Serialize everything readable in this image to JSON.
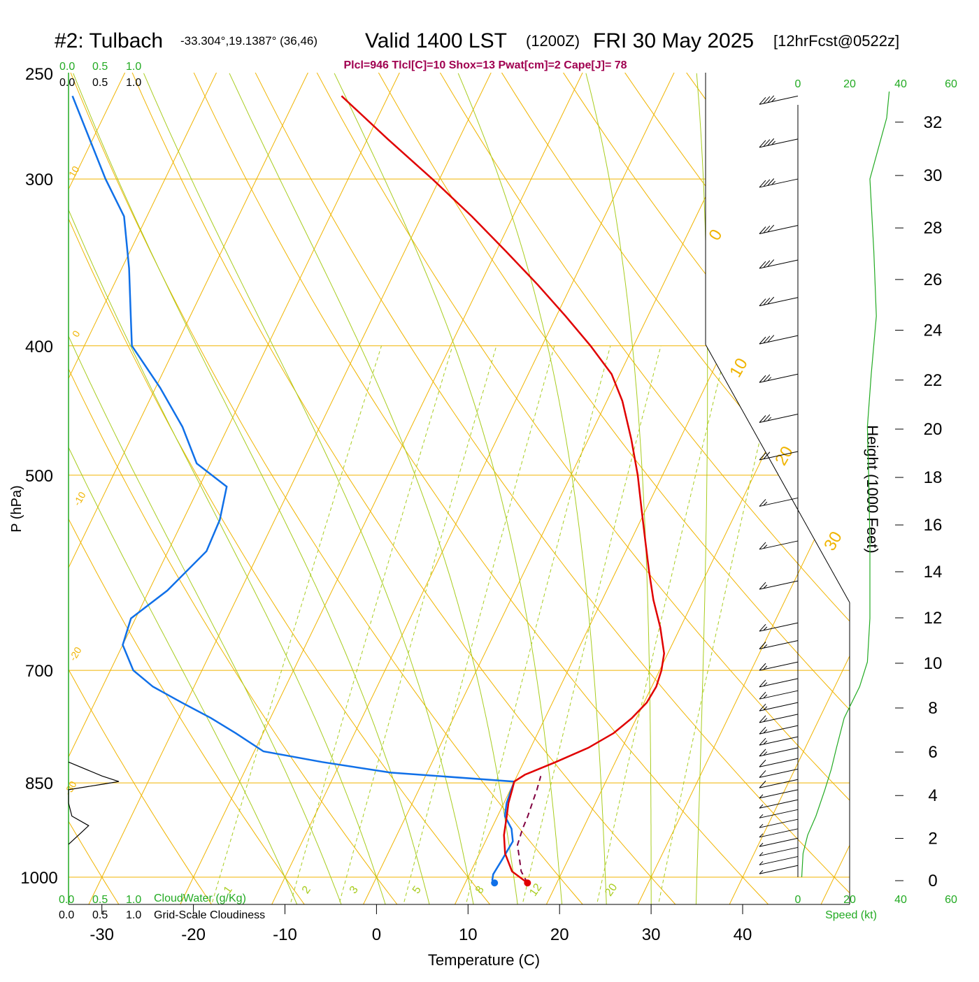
{
  "header": {
    "station": "#2: Tulbach",
    "coords": "-33.304°,19.1387° (36,46)",
    "valid": "Valid 1400 LST",
    "utc": "(1200Z)",
    "date": "FRI 30 May 2025",
    "forecast": "[12hrFcst@0522z]",
    "params": "Plcl=946 Tlcl[C]=10 Shox=13 Pwat[cm]=2 Cape[J]= 78"
  },
  "labels": {
    "pressure_axis": "P (hPa)",
    "temperature_axis": "Temperature (C)",
    "height_axis": "Height (1000 Feet)",
    "cloudwater": "CloudWater (g/Kg)",
    "cloudiness": "Grid-Scale Cloudiness",
    "speed": "Speed (kt)",
    "scale_ticks": [
      "0.0",
      "0.5",
      "1.0"
    ],
    "speed_ticks": [
      "0",
      "20",
      "40",
      "60"
    ]
  },
  "colors": {
    "isobar": "#f0b400",
    "isotherm": "#f0b400",
    "dry_adiabat": "#f0b400",
    "moist_adiabat": "#a8cc1e",
    "mixing_ratio": "#a8cc1e",
    "temperature": "#e00000",
    "dewpoint": "#1070e8",
    "parcel": "#800040",
    "params": "#a00050",
    "speed": "#22aa22",
    "cloud_scale": "#22aa22"
  },
  "chart_data": {
    "type": "line",
    "subtype": "skew-T log-P sounding",
    "x_axis": {
      "label": "Temperature (C)",
      "ticks": [
        -30,
        -20,
        -10,
        0,
        10,
        20,
        30,
        40
      ],
      "range": [
        -33,
        45
      ]
    },
    "y_axis": {
      "label": "P (hPa)",
      "scale": "log",
      "ticks": [
        250,
        300,
        400,
        500,
        700,
        850,
        1000
      ],
      "range": [
        1000,
        250
      ]
    },
    "height_axis": {
      "label": "Height (1000 Feet)",
      "ticks": [
        0,
        2,
        4,
        6,
        8,
        10,
        12,
        14,
        16,
        18,
        20,
        22,
        24,
        26,
        28,
        30,
        32
      ]
    },
    "isotherm_labels": [
      "10",
      "0",
      "-10",
      "-20",
      "-30",
      "0",
      "10",
      "20",
      "30"
    ],
    "mixing_ratio_labels": [
      "1",
      "2",
      "3",
      "5",
      "8",
      "12",
      "20"
    ],
    "series": [
      {
        "key": "temperature",
        "points": [
          [
            1010,
            16.8
          ],
          [
            990,
            14.5
          ],
          [
            960,
            12.8
          ],
          [
            930,
            11.7
          ],
          [
            900,
            11.0
          ],
          [
            880,
            10.5
          ],
          [
            860,
            10.2
          ],
          [
            848,
            10.0
          ],
          [
            838,
            10.8
          ],
          [
            820,
            13.5
          ],
          [
            800,
            16.3
          ],
          [
            780,
            18.3
          ],
          [
            760,
            19.5
          ],
          [
            740,
            20.3
          ],
          [
            720,
            20.5
          ],
          [
            700,
            20.2
          ],
          [
            680,
            19.6
          ],
          [
            650,
            17.8
          ],
          [
            620,
            15.6
          ],
          [
            590,
            13.6
          ],
          [
            560,
            11.6
          ],
          [
            530,
            9.5
          ],
          [
            500,
            7.3
          ],
          [
            470,
            4.7
          ],
          [
            440,
            1.7
          ],
          [
            420,
            -0.9
          ],
          [
            400,
            -4.7
          ],
          [
            380,
            -9.0
          ],
          [
            360,
            -13.7
          ],
          [
            340,
            -18.9
          ],
          [
            320,
            -24.5
          ],
          [
            300,
            -30.8
          ],
          [
            280,
            -37.8
          ],
          [
            260,
            -45.1
          ]
        ]
      },
      {
        "key": "dewpoint",
        "points": [
          [
            1010,
            13.2
          ],
          [
            1005,
            12.8
          ],
          [
            995,
            12.6
          ],
          [
            970,
            12.8
          ],
          [
            940,
            13.0
          ],
          [
            920,
            12.2
          ],
          [
            900,
            10.8
          ],
          [
            880,
            10.3
          ],
          [
            860,
            10.1
          ],
          [
            848,
            10.0
          ],
          [
            835,
            -4.0
          ],
          [
            820,
            -12.0
          ],
          [
            805,
            -19.0
          ],
          [
            780,
            -23.0
          ],
          [
            760,
            -26.5
          ],
          [
            740,
            -30.5
          ],
          [
            720,
            -34.5
          ],
          [
            700,
            -37.5
          ],
          [
            670,
            -40.0
          ],
          [
            640,
            -40.5
          ],
          [
            610,
            -38.0
          ],
          [
            570,
            -35.8
          ],
          [
            540,
            -36.0
          ],
          [
            510,
            -37.0
          ],
          [
            490,
            -41.5
          ],
          [
            460,
            -45.0
          ],
          [
            430,
            -49.5
          ],
          [
            400,
            -54.8
          ],
          [
            380,
            -56.5
          ],
          [
            350,
            -59.2
          ],
          [
            320,
            -62.5
          ],
          [
            300,
            -66.5
          ],
          [
            260,
            -74.5
          ]
        ]
      },
      {
        "key": "parcel",
        "points": [
          [
            1010,
            16.8
          ],
          [
            990,
            15.5
          ],
          [
            970,
            14.7
          ],
          [
            946,
            13.7
          ],
          [
            920,
            13.4
          ],
          [
            900,
            13.3
          ],
          [
            880,
            13.1
          ],
          [
            860,
            12.9
          ],
          [
            840,
            12.6
          ]
        ]
      },
      {
        "key": "speed",
        "points": [
          [
            1000,
            1.5
          ],
          [
            960,
            2.0
          ],
          [
            930,
            3.8
          ],
          [
            900,
            7.0
          ],
          [
            860,
            10.5
          ],
          [
            830,
            13.0
          ],
          [
            800,
            15.0
          ],
          [
            760,
            18.0
          ],
          [
            720,
            24.0
          ],
          [
            690,
            27.0
          ],
          [
            640,
            28.0
          ],
          [
            560,
            28.0
          ],
          [
            500,
            27.5
          ],
          [
            460,
            27.0
          ],
          [
            420,
            28.5
          ],
          [
            380,
            30.5
          ],
          [
            340,
            29.5
          ],
          [
            300,
            28.0
          ],
          [
            270,
            34.5
          ],
          [
            258,
            35.5
          ]
        ]
      }
    ],
    "cloudwater_points": [
      [
        820,
        0.0
      ],
      [
        840,
        0.5
      ],
      [
        848,
        0.75
      ],
      [
        852,
        0.5
      ],
      [
        860,
        0.0
      ],
      [
        880,
        0.0
      ],
      [
        900,
        0.05
      ],
      [
        915,
        0.3
      ],
      [
        925,
        0.2
      ],
      [
        945,
        0.0
      ]
    ],
    "surface_points": {
      "temperature": 16.8,
      "dewpoint": 13.2
    },
    "wind_barbs": [
      {
        "p": 260,
        "spd": 35
      },
      {
        "p": 280,
        "spd": 35
      },
      {
        "p": 300,
        "spd": 35
      },
      {
        "p": 325,
        "spd": 30
      },
      {
        "p": 345,
        "spd": 30
      },
      {
        "p": 368,
        "spd": 30
      },
      {
        "p": 393,
        "spd": 30
      },
      {
        "p": 420,
        "spd": 25
      },
      {
        "p": 450,
        "spd": 25
      },
      {
        "p": 480,
        "spd": 20
      },
      {
        "p": 520,
        "spd": 15
      },
      {
        "p": 560,
        "spd": 15
      },
      {
        "p": 600,
        "spd": 15
      },
      {
        "p": 645,
        "spd": 15
      },
      {
        "p": 665,
        "spd": 15
      },
      {
        "p": 690,
        "spd": 15
      },
      {
        "p": 710,
        "spd": 15
      },
      {
        "p": 725,
        "spd": 15
      },
      {
        "p": 740,
        "spd": 15
      },
      {
        "p": 755,
        "spd": 15
      },
      {
        "p": 770,
        "spd": 15
      },
      {
        "p": 785,
        "spd": 15
      },
      {
        "p": 800,
        "spd": 15
      },
      {
        "p": 815,
        "spd": 10
      },
      {
        "p": 830,
        "spd": 10
      },
      {
        "p": 845,
        "spd": 10
      },
      {
        "p": 860,
        "spd": 5
      },
      {
        "p": 875,
        "spd": 5
      },
      {
        "p": 890,
        "spd": 5
      },
      {
        "p": 905,
        "spd": 5
      },
      {
        "p": 920,
        "spd": 5
      },
      {
        "p": 935,
        "spd": 5
      },
      {
        "p": 950,
        "spd": 5
      },
      {
        "p": 965,
        "spd": 5
      },
      {
        "p": 980,
        "spd": 5
      }
    ]
  }
}
